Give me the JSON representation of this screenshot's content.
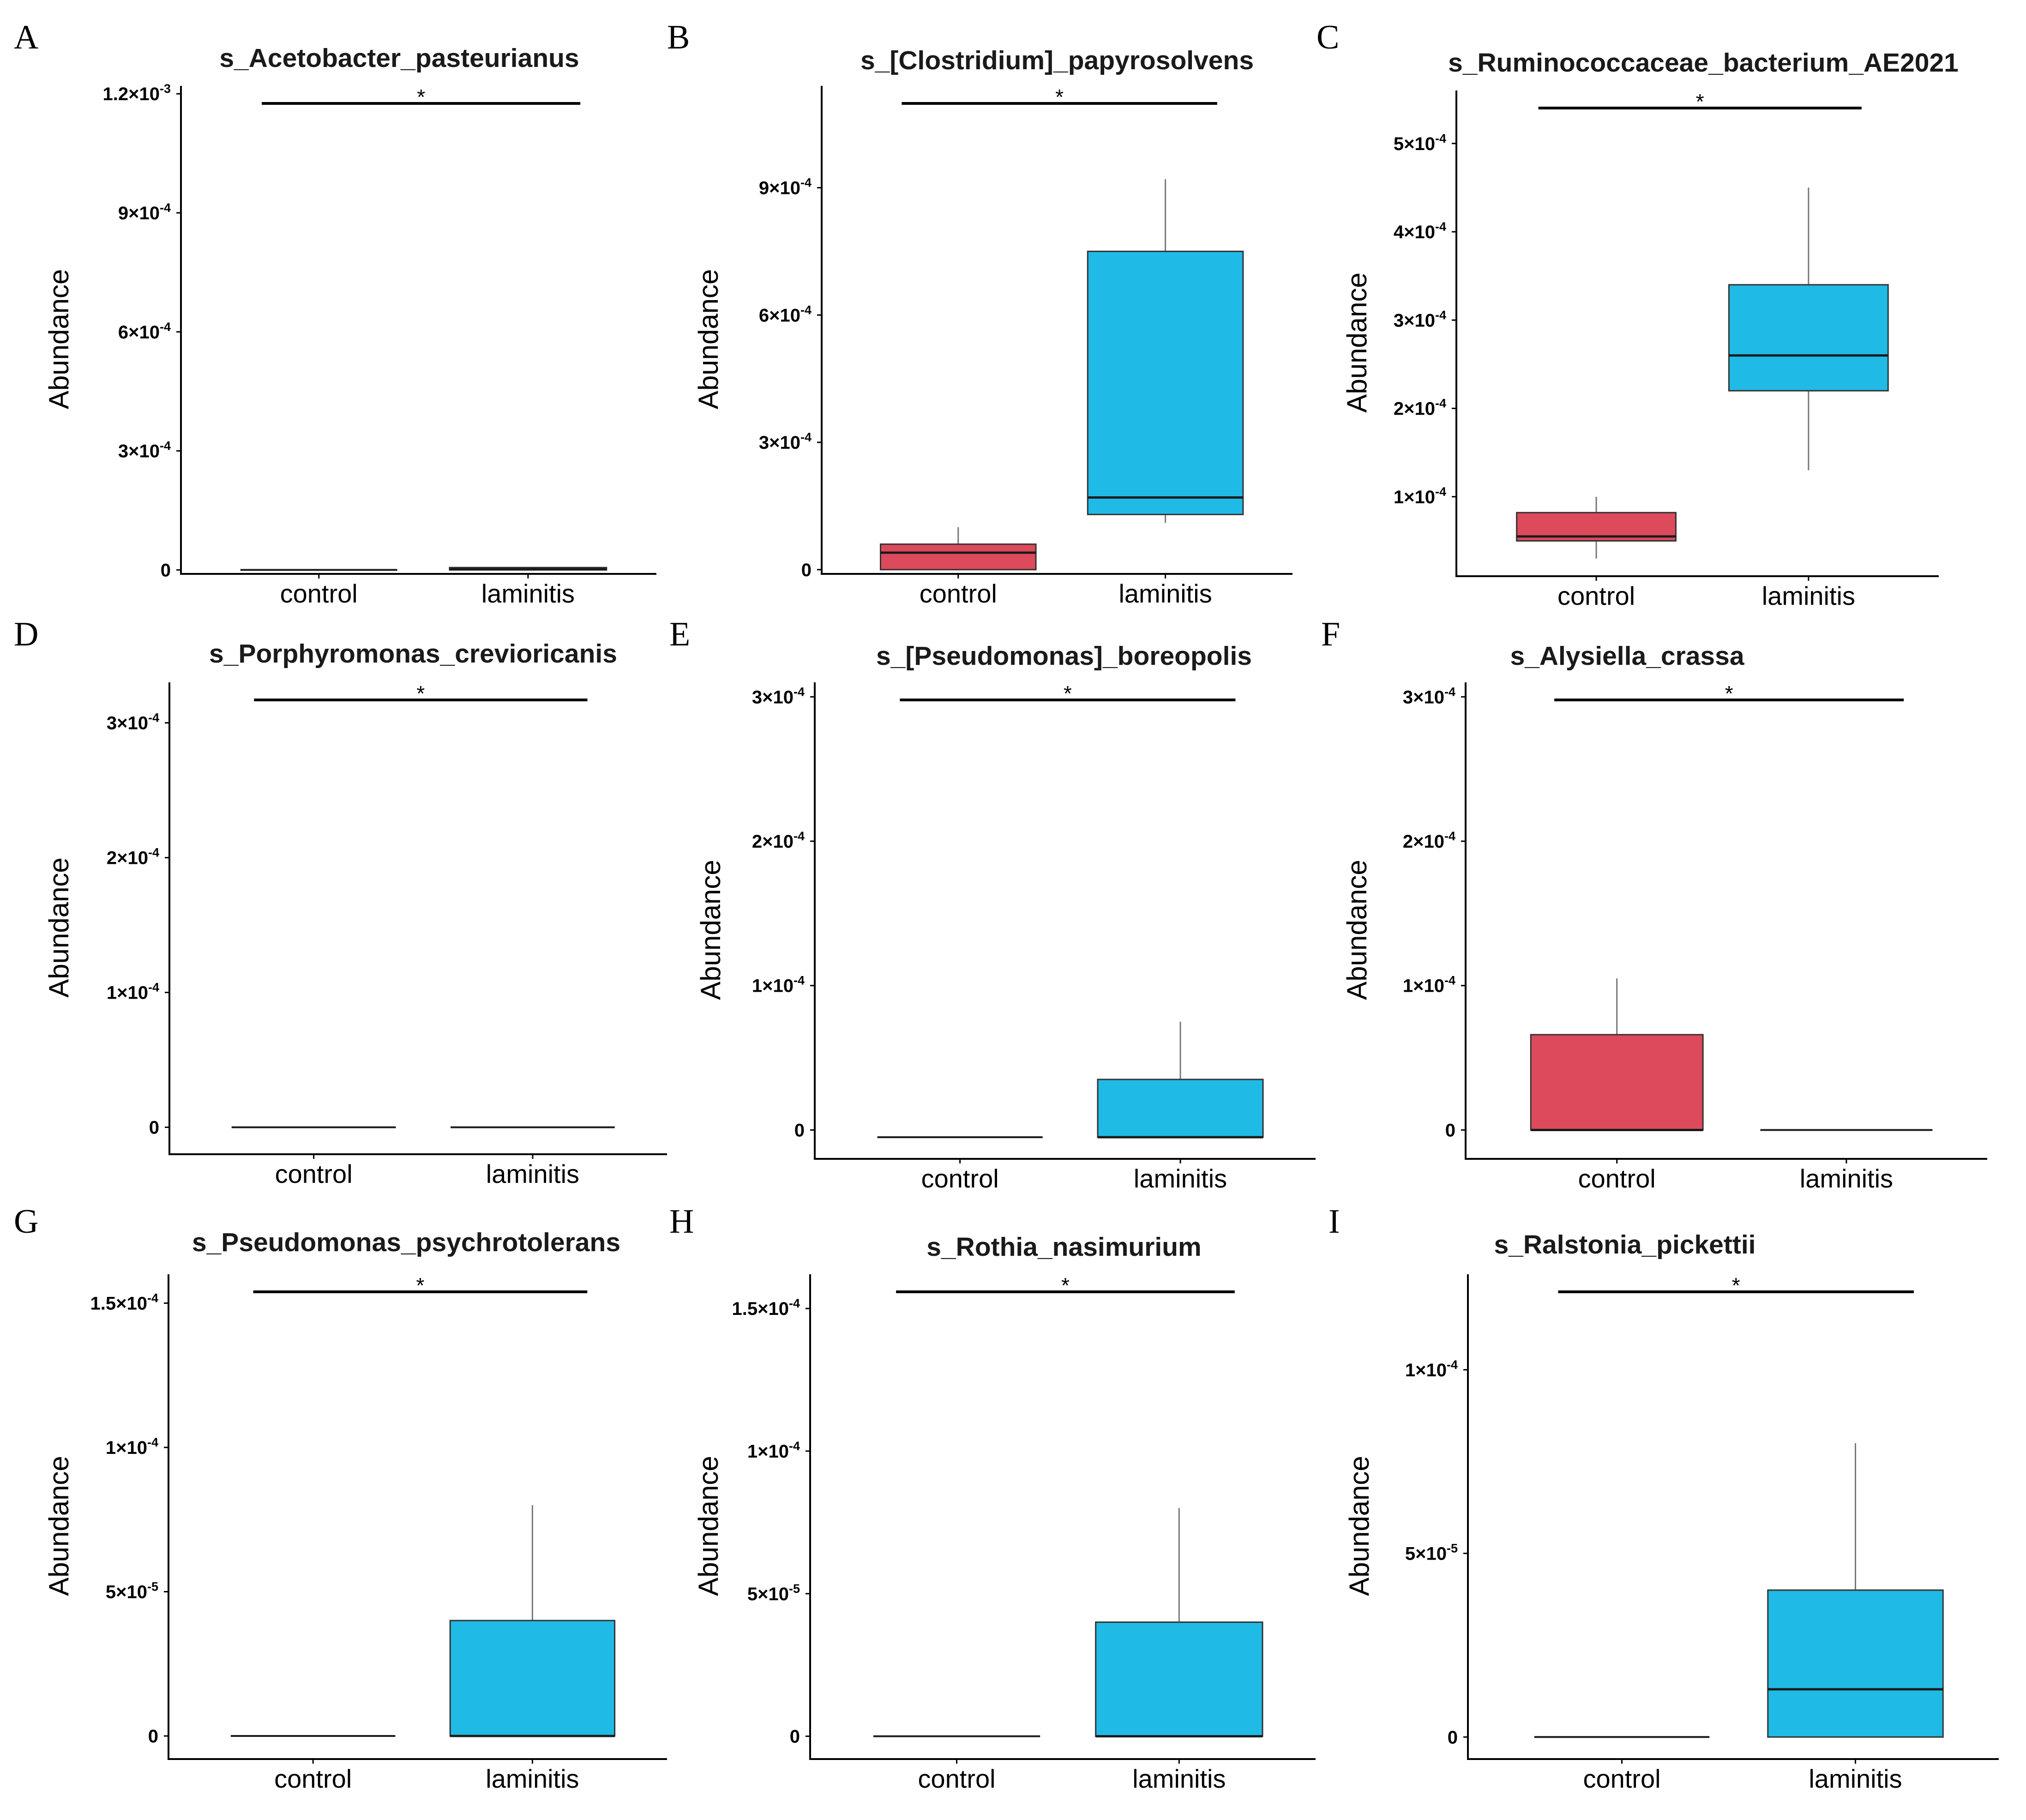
{
  "colors": {
    "control": "#dc4a5c",
    "laminitis": "#1fbbe6",
    "line": "#1a1a1a",
    "whisker": "#777777"
  },
  "chart_data": [
    {
      "letter": "A",
      "type": "box",
      "title": "s_Acetobacter_pasteurianus",
      "ylabel": "Abundance",
      "ylim": [
        -1e-05,
        0.00122
      ],
      "yticks": [
        {
          "value": 0,
          "label": "0"
        },
        {
          "value": 0.0003,
          "label": "3×10",
          "exp": "-4"
        },
        {
          "value": 0.0006,
          "label": "6×10",
          "exp": "-4"
        },
        {
          "value": 0.0009,
          "label": "9×10",
          "exp": "-4"
        },
        {
          "value": 0.0012,
          "label": "1.2×10",
          "exp": "-3"
        }
      ],
      "groups": [
        {
          "name": "control",
          "min": 0,
          "q1": 0,
          "median": 0,
          "q3": 0,
          "max": 0
        },
        {
          "name": "laminitis",
          "min": 0,
          "q1": 0,
          "median": 2e-06,
          "q3": 6e-06,
          "max": 6e-06
        }
      ],
      "significance": "*"
    },
    {
      "letter": "B",
      "type": "box",
      "title": "s_[Clostridium]_papyrosolvens",
      "ylabel": "Abundance",
      "ylim": [
        -1e-05,
        0.00114
      ],
      "yticks": [
        {
          "value": 0,
          "label": "0"
        },
        {
          "value": 0.0003,
          "label": "3×10",
          "exp": "-4"
        },
        {
          "value": 0.0006,
          "label": "6×10",
          "exp": "-4"
        },
        {
          "value": 0.0009,
          "label": "9×10",
          "exp": "-4"
        }
      ],
      "groups": [
        {
          "name": "control",
          "min": 0,
          "q1": 0,
          "median": 4e-05,
          "q3": 6e-05,
          "max": 0.0001
        },
        {
          "name": "laminitis",
          "min": 0.00011,
          "q1": 0.00013,
          "median": 0.00017,
          "q3": 0.00075,
          "max": 0.00092
        }
      ],
      "significance": "*"
    },
    {
      "letter": "C",
      "type": "box",
      "title": "s_Ruminococcaceae_bacterium_AE2021",
      "ylabel": "Abundance",
      "ylim": [
        1e-05,
        0.00056
      ],
      "yticks": [
        {
          "value": 0.0001,
          "label": "1×10",
          "exp": "-4"
        },
        {
          "value": 0.0002,
          "label": "2×10",
          "exp": "-4"
        },
        {
          "value": 0.0003,
          "label": "3×10",
          "exp": "-4"
        },
        {
          "value": 0.0004,
          "label": "4×10",
          "exp": "-4"
        },
        {
          "value": 0.0005,
          "label": "5×10",
          "exp": "-4"
        }
      ],
      "groups": [
        {
          "name": "control",
          "min": 3e-05,
          "q1": 5e-05,
          "median": 5.5e-05,
          "q3": 8.2e-05,
          "max": 0.0001
        },
        {
          "name": "laminitis",
          "min": 0.00013,
          "q1": 0.00022,
          "median": 0.00026,
          "q3": 0.00034,
          "max": 0.00045
        }
      ],
      "significance": "*"
    },
    {
      "letter": "D",
      "type": "box",
      "title": "s_Porphyromonas_creviorican​is",
      "ylabel": "Abundance",
      "ylim": [
        -2e-05,
        0.00033
      ],
      "yticks": [
        {
          "value": 0,
          "label": "0"
        },
        {
          "value": 0.0001,
          "label": "1×10",
          "exp": "-4"
        },
        {
          "value": 0.0002,
          "label": "2×10",
          "exp": "-4"
        },
        {
          "value": 0.0003,
          "label": "3×10",
          "exp": "-4"
        }
      ],
      "groups": [
        {
          "name": "control",
          "min": 0,
          "q1": 0,
          "median": 0,
          "q3": 0,
          "max": 0
        },
        {
          "name": "laminitis",
          "min": 0,
          "q1": 0,
          "median": 0,
          "q3": 0,
          "max": 0
        }
      ],
      "significance": "*"
    },
    {
      "letter": "E",
      "type": "box",
      "title": "s_[Pseudomonas]_boreopolis",
      "ylabel": "Abundance",
      "ylim": [
        -2e-05,
        0.00031
      ],
      "yticks": [
        {
          "value": 0,
          "label": "0"
        },
        {
          "value": 0.0001,
          "label": "1×10",
          "exp": "-4"
        },
        {
          "value": 0.0002,
          "label": "2×10",
          "exp": "-4"
        },
        {
          "value": 0.0003,
          "label": "3×10",
          "exp": "-4"
        }
      ],
      "groups": [
        {
          "name": "control",
          "min": -5e-06,
          "q1": -5e-06,
          "median": -5e-06,
          "q3": -5e-06,
          "max": -5e-06
        },
        {
          "name": "laminitis",
          "min": -5e-06,
          "q1": -5e-06,
          "median": -5e-06,
          "q3": 3.5e-05,
          "max": 7.5e-05
        }
      ],
      "significance": "*"
    },
    {
      "letter": "F",
      "type": "box",
      "title": "s_Alysiella_crassa",
      "ylabel": "Abundance",
      "ylim": [
        -2e-05,
        0.00031
      ],
      "yticks": [
        {
          "value": 0,
          "label": "0"
        },
        {
          "value": 0.0001,
          "label": "1×10",
          "exp": "-4"
        },
        {
          "value": 0.0002,
          "label": "2×10",
          "exp": "-4"
        },
        {
          "value": 0.0003,
          "label": "3×10",
          "exp": "-4"
        }
      ],
      "groups": [
        {
          "name": "control",
          "min": 0,
          "q1": 0,
          "median": 0,
          "q3": 6.6e-05,
          "max": 0.000105
        },
        {
          "name": "laminitis",
          "min": 0,
          "q1": 0,
          "median": 0,
          "q3": 0,
          "max": 0
        }
      ],
      "significance": "*"
    },
    {
      "letter": "G",
      "type": "box",
      "title": "s_Pseudomonas_psychrotolerans",
      "ylabel": "Abundance",
      "ylim": [
        -8e-06,
        0.00016
      ],
      "yticks": [
        {
          "value": 0,
          "label": "0"
        },
        {
          "value": 5e-05,
          "label": "5×10",
          "exp": "-5"
        },
        {
          "value": 0.0001,
          "label": "1×10",
          "exp": "-4"
        },
        {
          "value": 0.00015,
          "label": "1.5×10",
          "exp": "-4"
        }
      ],
      "groups": [
        {
          "name": "control",
          "min": 0,
          "q1": 0,
          "median": 0,
          "q3": 0,
          "max": 0
        },
        {
          "name": "laminitis",
          "min": 0,
          "q1": 0,
          "median": 0,
          "q3": 4e-05,
          "max": 8e-05
        }
      ],
      "significance": "*"
    },
    {
      "letter": "H",
      "type": "box",
      "title": "s_Rothia_nasimurium",
      "ylabel": "Abundance",
      "ylim": [
        -8e-06,
        0.000162
      ],
      "yticks": [
        {
          "value": 0,
          "label": "0"
        },
        {
          "value": 5e-05,
          "label": "5×10",
          "exp": "-5"
        },
        {
          "value": 0.0001,
          "label": "1×10",
          "exp": "-4"
        },
        {
          "value": 0.00015,
          "label": "1.5×10",
          "exp": "-4"
        }
      ],
      "groups": [
        {
          "name": "control",
          "min": 0,
          "q1": 0,
          "median": 0,
          "q3": 0,
          "max": 0
        },
        {
          "name": "laminitis",
          "min": 0,
          "q1": 0,
          "median": 0,
          "q3": 4e-05,
          "max": 8e-05
        }
      ],
      "significance": "*"
    },
    {
      "letter": "I",
      "type": "box",
      "title": "s_Ralstonia_pickettii",
      "ylabel": "Abundance",
      "ylim": [
        -6e-06,
        0.000126
      ],
      "yticks": [
        {
          "value": 0,
          "label": "0"
        },
        {
          "value": 5e-05,
          "label": "5×10",
          "exp": "-5"
        },
        {
          "value": 0.0001,
          "label": "1×10",
          "exp": "-4"
        }
      ],
      "groups": [
        {
          "name": "control",
          "min": 0,
          "q1": 0,
          "median": 0,
          "q3": 0,
          "max": 0
        },
        {
          "name": "laminitis",
          "min": 0,
          "q1": 0,
          "median": 1.3e-05,
          "q3": 4e-05,
          "max": 8e-05
        }
      ],
      "significance": "*"
    }
  ]
}
